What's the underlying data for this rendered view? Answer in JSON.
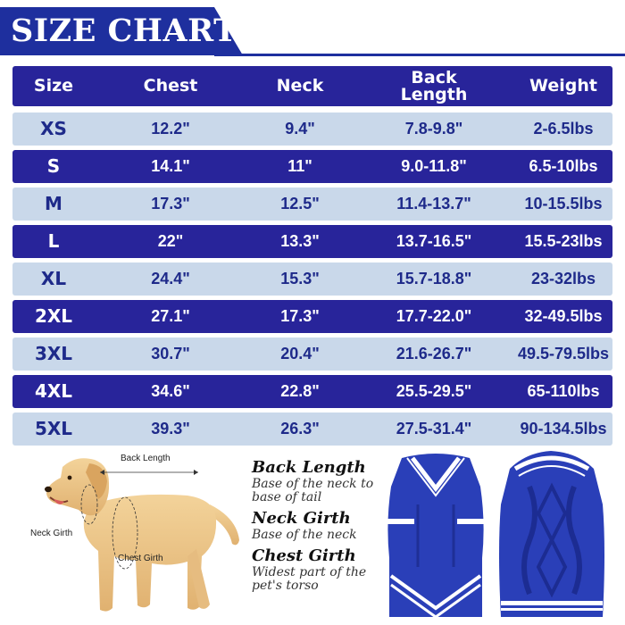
{
  "title": "SIZE CHART",
  "table": {
    "headers": [
      "Size",
      "Chest",
      "Neck",
      "Back\nLength",
      "Weight"
    ],
    "header_back_line1": "Back",
    "header_back_line2": "Length",
    "rows": [
      {
        "size": "XS",
        "chest": "12.2\"",
        "neck": "9.4\"",
        "back": "7.8-9.8\"",
        "weight": "2-6.5lbs"
      },
      {
        "size": "S",
        "chest": "14.1\"",
        "neck": "11\"",
        "back": "9.0-11.8\"",
        "weight": "6.5-10lbs"
      },
      {
        "size": "M",
        "chest": "17.3\"",
        "neck": "12.5\"",
        "back": "11.4-13.7\"",
        "weight": "10-15.5lbs"
      },
      {
        "size": "L",
        "chest": "22\"",
        "neck": "13.3\"",
        "back": "13.7-16.5\"",
        "weight": "15.5-23lbs"
      },
      {
        "size": "XL",
        "chest": "24.4\"",
        "neck": "15.3\"",
        "back": "15.7-18.8\"",
        "weight": "23-32lbs"
      },
      {
        "size": "2XL",
        "chest": "27.1\"",
        "neck": "17.3\"",
        "back": "17.7-22.0\"",
        "weight": "32-49.5lbs"
      },
      {
        "size": "3XL",
        "chest": "30.7\"",
        "neck": "20.4\"",
        "back": "21.6-26.7\"",
        "weight": "49.5-79.5lbs"
      },
      {
        "size": "4XL",
        "chest": "34.6\"",
        "neck": "22.8\"",
        "back": "25.5-29.5\"",
        "weight": "65-110lbs"
      },
      {
        "size": "5XL",
        "chest": "39.3\"",
        "neck": "26.3\"",
        "back": "27.5-31.4\"",
        "weight": "90-134.5lbs"
      }
    ]
  },
  "dog_labels": {
    "back_length": "Back Length",
    "neck_girth": "Neck Girth",
    "chest_girth": "Chest Girth"
  },
  "legend": [
    {
      "title": "Back Length",
      "desc": "Base of the neck to base of tail"
    },
    {
      "title": "Neck Girth",
      "desc": "Base of the neck"
    },
    {
      "title": "Chest Girth",
      "desc": "Widest part of the pet's torso"
    }
  ],
  "colors": {
    "brand_blue": "#1e2f9e",
    "dark_row": "#28249a",
    "light_row": "#c9d8ea",
    "sweater_blue": "#2a3fb8"
  },
  "icons": {
    "dog": "dog-illustration",
    "sweater_front": "sweater-front-image",
    "sweater_back": "sweater-back-image"
  }
}
